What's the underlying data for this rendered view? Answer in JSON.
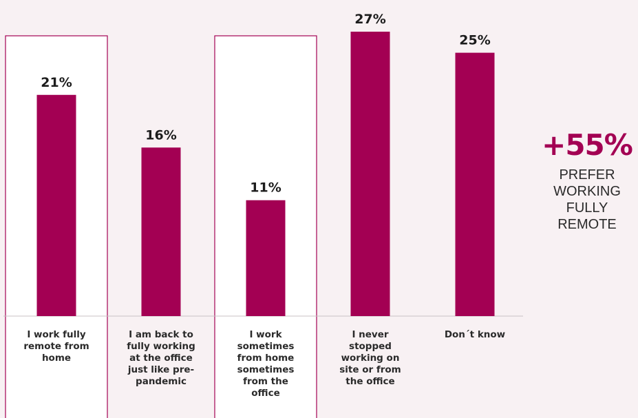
{
  "chart_data": {
    "type": "bar",
    "categories": [
      "I work fully remote from home",
      "I am back to fully working at the office just like pre-pandemic",
      "I work sometimes from home sometimes from the office",
      "I never stopped working on site or from the office",
      "Don´t know"
    ],
    "category_lines": [
      [
        "I work fully",
        "remote from",
        "home"
      ],
      [
        "I am back to",
        "fully working",
        "at the office",
        "just like pre-",
        "pandemic"
      ],
      [
        "I work",
        "sometimes",
        "from home",
        "sometimes",
        "from the",
        "office"
      ],
      [
        "I never",
        "stopped",
        "working on",
        "site or from",
        "the office"
      ],
      [
        "Don´t know"
      ]
    ],
    "values": [
      21,
      16,
      11,
      27,
      25
    ],
    "value_labels": [
      "21%",
      "16%",
      "11%",
      "27%",
      "25%"
    ],
    "highlighted": [
      0,
      2
    ],
    "ylim": [
      0,
      27
    ],
    "grid": false,
    "bar_color": "#a30053"
  },
  "callout": {
    "value": "+55%",
    "text": "PREFER\nWORKING\nFULLY\nREMOTE"
  }
}
